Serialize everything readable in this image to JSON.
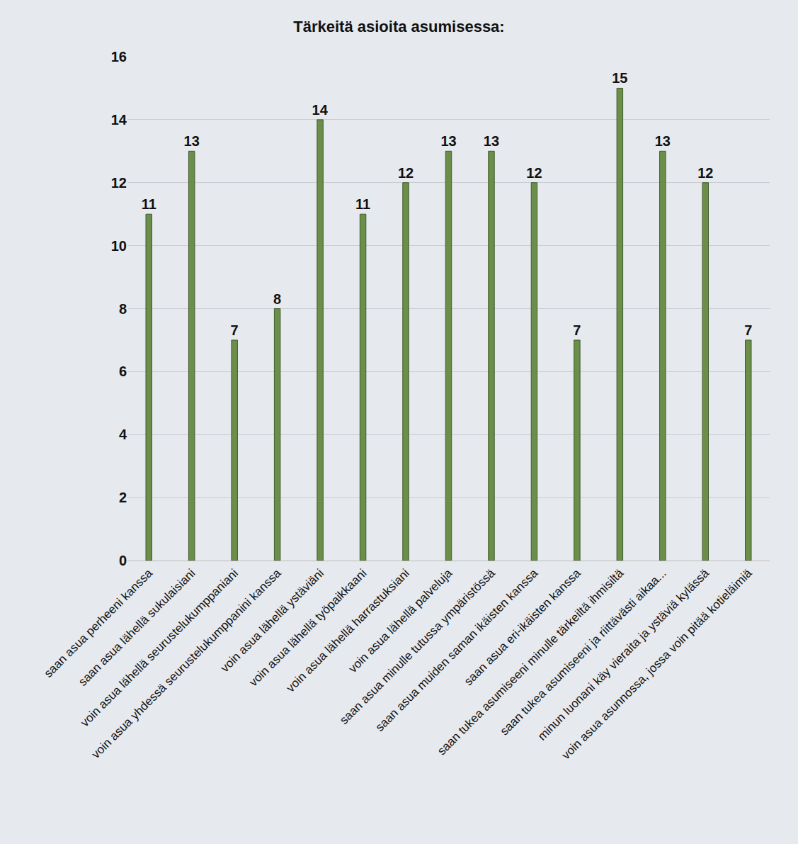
{
  "chart_data": {
    "type": "bar",
    "title": "Tärkeitä asioita asumisessa:",
    "categories": [
      "saan asua perheeni kanssa",
      "saan asua lähellä sukulaisiani",
      "voin asua lähellä seurustelukumppaniani",
      "voin asua yhdessä seurustelukumppanini kanssa",
      "voin asua lähellä ystäviäni",
      "voin asua lähellä työpaikkaani",
      "voin asua lähellä harrastuksiani",
      "voin asua lähellä palveluja",
      "saan asua minulle tutussa ympäristössä",
      "saan asua muiden saman ikäisten kanssa",
      "saan asua eri-ikäisten kanssa",
      "saan tukea asumiseeni minulle tärkeiltä ihmisiltä",
      "saan tukea asumiseeni ja riittävästi aikaa...",
      "minun luonani käy vieraita ja ystäviä kylässä",
      "voin asua asunnossa, jossa voin pitää kotieläimiä"
    ],
    "values": [
      11,
      13,
      7,
      8,
      14,
      11,
      12,
      13,
      13,
      12,
      7,
      15,
      13,
      12,
      7
    ],
    "color": "#6b8f4a",
    "ylim": [
      0,
      16
    ],
    "yticks": [
      0,
      2,
      4,
      6,
      8,
      10,
      12,
      14,
      16
    ],
    "grid": true,
    "data_labels": true
  }
}
